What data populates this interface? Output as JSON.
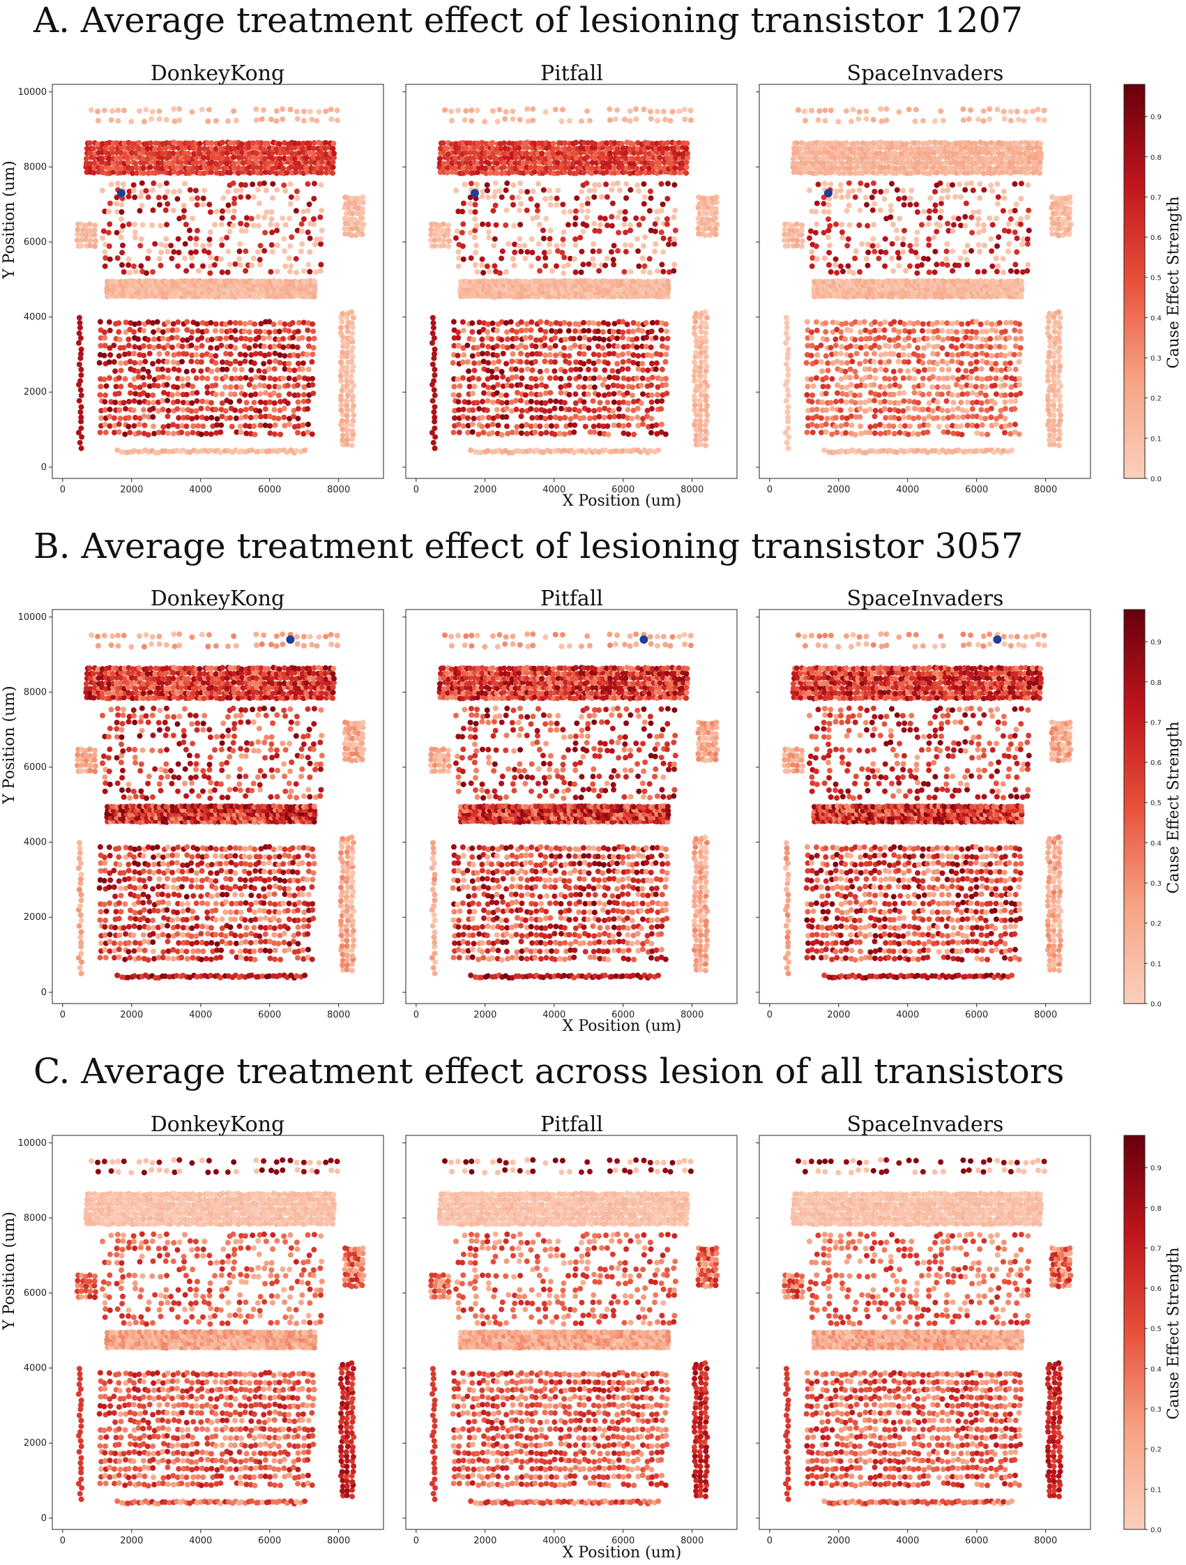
{
  "figure": {
    "sections": [
      {
        "title": "A. Average treatment effect of lesioning transistor 1207",
        "lesioned_transistor": {
          "x": 1700,
          "y": 7300
        },
        "scheme": "A"
      },
      {
        "title": "B. Average treatment effect of lesioning transistor 3057",
        "lesioned_transistor": {
          "x": 6600,
          "y": 9400
        },
        "scheme": "B"
      },
      {
        "title": "C. Average treatment effect across lesion of all transistors",
        "lesioned_transistor": null,
        "scheme": "C"
      }
    ],
    "panel_titles": [
      "DonkeyKong",
      "Pitfall",
      "SpaceInvaders"
    ],
    "xlabel": "X Position (um)",
    "ylabel": "Y Position (um)",
    "colorbar_label": "Cause Effect Strength",
    "colors": {
      "cmap_low": "#fbd0bc",
      "cmap_mid": "#e8503a",
      "cmap_high": "#67000d",
      "lesion_marker": "#1f3f99"
    }
  },
  "chart_data": {
    "type": "scatter",
    "title": "",
    "xlabel": "X Position (um)",
    "ylabel": "Y Position (um)",
    "xlim": [
      -300,
      9300
    ],
    "ylim": [
      -300,
      10200
    ],
    "x_ticks": [
      0,
      2000,
      4000,
      6000,
      8000
    ],
    "y_ticks": [
      0,
      2000,
      4000,
      6000,
      8000,
      10000
    ],
    "colorbar": {
      "label": "Cause Effect Strength",
      "range": [
        0.0,
        0.98
      ],
      "ticks": [
        0.0,
        0.1,
        0.2,
        0.3,
        0.4,
        0.5,
        0.6,
        0.7,
        0.8,
        0.9
      ],
      "colormap": "Reds"
    },
    "layout_regions": [
      {
        "name": "upper-register-band",
        "x": [
          700,
          7900
        ],
        "y": [
          7850,
          8650
        ],
        "dx": 110,
        "dy": 130
      },
      {
        "name": "top-row",
        "x": [
          800,
          8000
        ],
        "y": [
          9250,
          9500
        ],
        "dx": 200,
        "dy": 250
      },
      {
        "name": "middle-band",
        "x": [
          1300,
          7300
        ],
        "y": [
          4550,
          4950
        ],
        "dx": 95,
        "dy": 100
      },
      {
        "name": "lower-array",
        "x": [
          1100,
          7300
        ],
        "y": [
          900,
          4000
        ],
        "dx": 140,
        "dy": 210
      },
      {
        "name": "right-column",
        "x": [
          8100,
          8400
        ],
        "y": [
          600,
          4200
        ],
        "dx": 150,
        "dy": 130
      },
      {
        "name": "left-column",
        "x": [
          500,
          500
        ],
        "y": [
          500,
          4000
        ],
        "dx": 200,
        "dy": 140
      },
      {
        "name": "bottom-row",
        "x": [
          1600,
          7000
        ],
        "y": [
          420,
          420
        ],
        "dx": 100,
        "dy": 200
      },
      {
        "name": "mid-scatter",
        "x": [
          1200,
          7600
        ],
        "y": [
          5200,
          7600
        ],
        "dx": 180,
        "dy": 180
      },
      {
        "name": "right-mid-block",
        "x": [
          8200,
          8700
        ],
        "y": [
          6200,
          7300
        ],
        "dx": 100,
        "dy": 140
      },
      {
        "name": "left-mid-marks",
        "x": [
          450,
          1000
        ],
        "y": [
          5900,
          6500
        ],
        "dx": 120,
        "dy": 140
      }
    ],
    "panels": [
      {
        "section": "A",
        "game": "DonkeyKong"
      },
      {
        "section": "A",
        "game": "Pitfall"
      },
      {
        "section": "A",
        "game": "SpaceInvaders"
      },
      {
        "section": "B",
        "game": "DonkeyKong"
      },
      {
        "section": "B",
        "game": "Pitfall"
      },
      {
        "section": "B",
        "game": "SpaceInvaders"
      },
      {
        "section": "C",
        "game": "DonkeyKong"
      },
      {
        "section": "C",
        "game": "Pitfall"
      },
      {
        "section": "C",
        "game": "SpaceInvaders"
      }
    ]
  }
}
